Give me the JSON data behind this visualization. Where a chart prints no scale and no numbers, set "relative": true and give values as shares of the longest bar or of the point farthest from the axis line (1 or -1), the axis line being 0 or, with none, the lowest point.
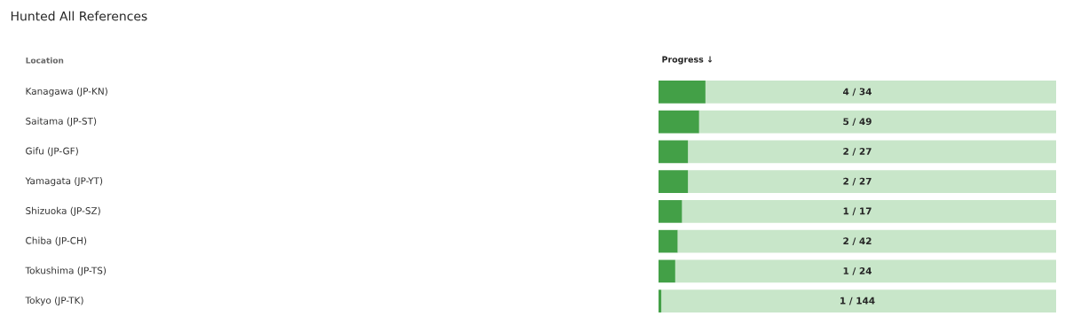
{
  "chart_data": {
    "type": "bar",
    "orientation": "horizontal",
    "stacked": true,
    "relative": true,
    "title": "Hunted All References",
    "ylabel": "Location",
    "xlabel": "Progress ↓",
    "categories": [
      "Kanagawa (JP-KN)",
      "Saitama (JP-ST)",
      "Gifu (JP-GF)",
      "Yamagata (JP-YT)",
      "Shizuoka (JP-SZ)",
      "Chiba (JP-CH)",
      "Tokushima (JP-TS)",
      "Tokyo (JP-TK)"
    ],
    "series": [
      {
        "color": "#43a047",
        "values": [
          0.118,
          0.102,
          0.074,
          0.074,
          0.059,
          0.048,
          0.042,
          0.007
        ]
      },
      {
        "color": "#c8e6c9",
        "values": [
          0.882,
          0.898,
          0.926,
          0.926,
          0.941,
          0.952,
          0.958,
          0.993
        ]
      }
    ],
    "annotations": [
      "4 / 34",
      "5 / 49",
      "2 / 27",
      "2 / 27",
      "1 / 17",
      "2 / 42",
      "1 / 24",
      "1 / 144"
    ]
  }
}
